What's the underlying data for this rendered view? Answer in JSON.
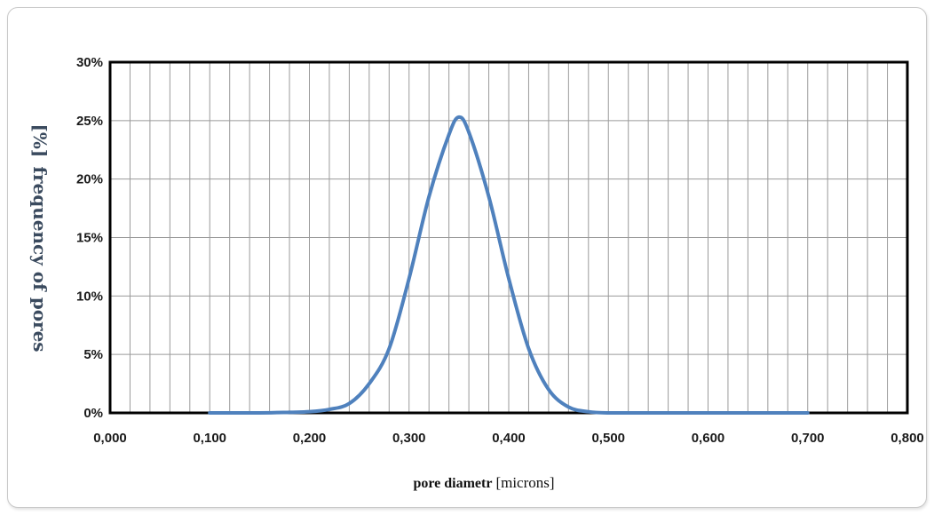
{
  "chart_data": {
    "type": "line",
    "title": "",
    "xlabel": "pore diametr",
    "xlabel_unit": "[microns]",
    "ylabel": "frequency of pores",
    "ylabel_unit": "[%]",
    "xlim": [
      0,
      0.8
    ],
    "ylim": [
      0,
      30
    ],
    "x_ticks": [
      "0,000",
      "0,100",
      "0,200",
      "0,300",
      "0,400",
      "0,500",
      "0,600",
      "0,700",
      "0,800"
    ],
    "y_ticks": [
      "0%",
      "5%",
      "10%",
      "15%",
      "20%",
      "25%",
      "30%"
    ],
    "grid": true,
    "legend": "none",
    "line_color": "#4f81bd",
    "series": [
      {
        "x": [
          0.1,
          0.15,
          0.18,
          0.2,
          0.22,
          0.24,
          0.26,
          0.28,
          0.3,
          0.32,
          0.34,
          0.35,
          0.36,
          0.38,
          0.4,
          0.42,
          0.44,
          0.46,
          0.48,
          0.5,
          0.55,
          0.6,
          0.65,
          0.7
        ],
        "y": [
          0.0,
          0.0,
          0.05,
          0.1,
          0.3,
          0.8,
          2.5,
          5.5,
          11.5,
          18.5,
          23.8,
          25.3,
          24.0,
          18.5,
          11.5,
          5.5,
          2.0,
          0.5,
          0.1,
          0.0,
          0.0,
          0.0,
          0.0,
          0.0
        ]
      }
    ]
  }
}
